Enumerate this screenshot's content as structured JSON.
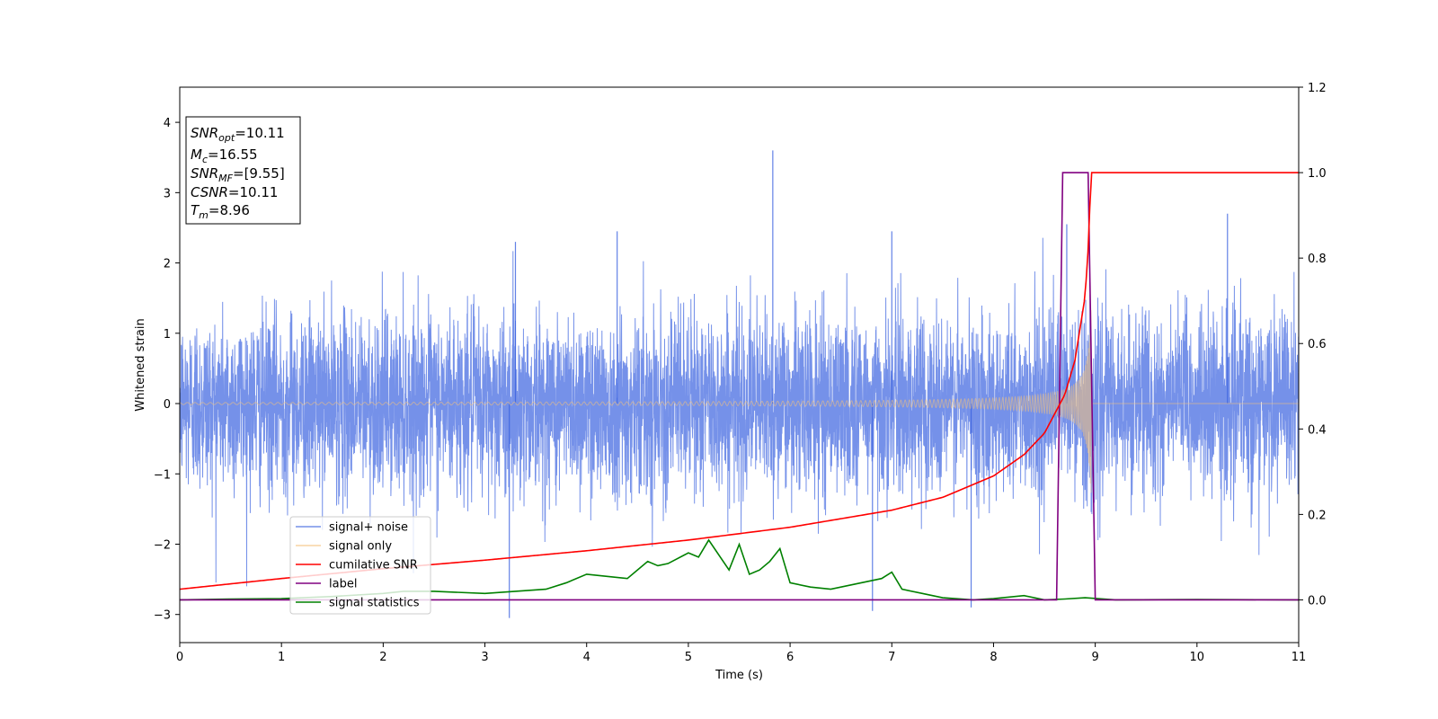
{
  "chart_data": {
    "type": "line",
    "title": "",
    "xlabel": "Time (s)",
    "ylabel": "Whitened strain",
    "xlim": [
      0,
      11
    ],
    "ylim": [
      -3.4,
      4.5
    ],
    "y2lim": [
      -0.1,
      1.2
    ],
    "x_ticks": [
      0,
      1,
      2,
      3,
      4,
      5,
      6,
      7,
      8,
      9,
      10,
      11
    ],
    "y_ticks": [
      -3,
      -2,
      -1,
      0,
      1,
      2,
      3,
      4
    ],
    "y2_ticks": [
      "0.0",
      "0.2",
      "0.4",
      "0.6",
      "0.8",
      "1.0",
      "1.2"
    ],
    "grid": false,
    "legend_position": "lower-left",
    "info_box": {
      "snr_opt": {
        "main": "SNR",
        "sub": "opt",
        "value": "=10.11"
      },
      "mc": {
        "main": "M",
        "sub": "c",
        "value": "=16.55"
      },
      "snr_mf": {
        "main": "SNR",
        "sub": "MF",
        "value": "=[9.55]"
      },
      "csnr": {
        "main": "CSNR",
        "sub": "",
        "value": "=10.11"
      },
      "tm": {
        "main": "T",
        "sub": "m",
        "value": "=8.96"
      }
    },
    "colors": {
      "noise": "#3b62e0",
      "signal": "#f5c27a",
      "cumulative": "#ff0000",
      "label": "#800080",
      "statistics": "#008000"
    },
    "series": [
      {
        "name": "signal+ noise",
        "axis": "left",
        "description_values": "random noise, amplitude approx 1.5",
        "noise_amplitude": 1.5,
        "spikes": [
          [
            5.83,
            3.6
          ],
          [
            3.24,
            -3.05
          ],
          [
            8.72,
            2.55
          ],
          [
            10.3,
            2.7
          ],
          [
            3.3,
            2.3
          ],
          [
            4.3,
            2.45
          ],
          [
            7.0,
            2.45
          ],
          [
            6.81,
            -2.95
          ],
          [
            7.78,
            -2.9
          ]
        ]
      },
      {
        "name": "signal only",
        "axis": "left",
        "chirp_end": 8.96,
        "peak_amplitude": 1.5
      },
      {
        "name": "cumilative SNR",
        "axis": "right",
        "x": [
          0,
          1,
          2,
          3,
          4,
          5,
          6,
          7,
          7.5,
          8,
          8.3,
          8.5,
          8.7,
          8.8,
          8.9,
          8.93,
          8.96,
          11
        ],
        "values": [
          0.025,
          0.05,
          0.073,
          0.093,
          0.115,
          0.14,
          0.17,
          0.21,
          0.24,
          0.29,
          0.34,
          0.39,
          0.48,
          0.56,
          0.71,
          0.82,
          1.0,
          1.0
        ]
      },
      {
        "name": "label",
        "axis": "right",
        "x": [
          0,
          8.62,
          8.68,
          8.93,
          9.0,
          11
        ],
        "values": [
          0,
          0,
          1,
          1,
          0,
          0
        ]
      },
      {
        "name": "signal statistics",
        "axis": "right",
        "x": [
          0,
          0.5,
          1,
          1.5,
          2,
          2.2,
          2.5,
          3,
          3.3,
          3.6,
          3.8,
          4.0,
          4.2,
          4.4,
          4.6,
          4.7,
          4.8,
          5.0,
          5.1,
          5.2,
          5.4,
          5.5,
          5.6,
          5.7,
          5.8,
          5.9,
          6.0,
          6.2,
          6.4,
          6.7,
          6.9,
          7.0,
          7.1,
          7.3,
          7.5,
          7.8,
          8.0,
          8.3,
          8.5,
          8.7,
          8.9,
          9.2,
          10,
          11
        ],
        "values": [
          0,
          0.002,
          0.003,
          0.008,
          0.015,
          0.02,
          0.02,
          0.015,
          0.02,
          0.025,
          0.04,
          0.06,
          0.055,
          0.05,
          0.09,
          0.08,
          0.085,
          0.11,
          0.1,
          0.14,
          0.07,
          0.13,
          0.06,
          0.07,
          0.09,
          0.12,
          0.04,
          0.03,
          0.025,
          0.04,
          0.05,
          0.065,
          0.025,
          0.015,
          0.005,
          0.0,
          0.003,
          0.01,
          0.0,
          0.002,
          0.005,
          0.0,
          0.001,
          0.0
        ]
      }
    ]
  }
}
